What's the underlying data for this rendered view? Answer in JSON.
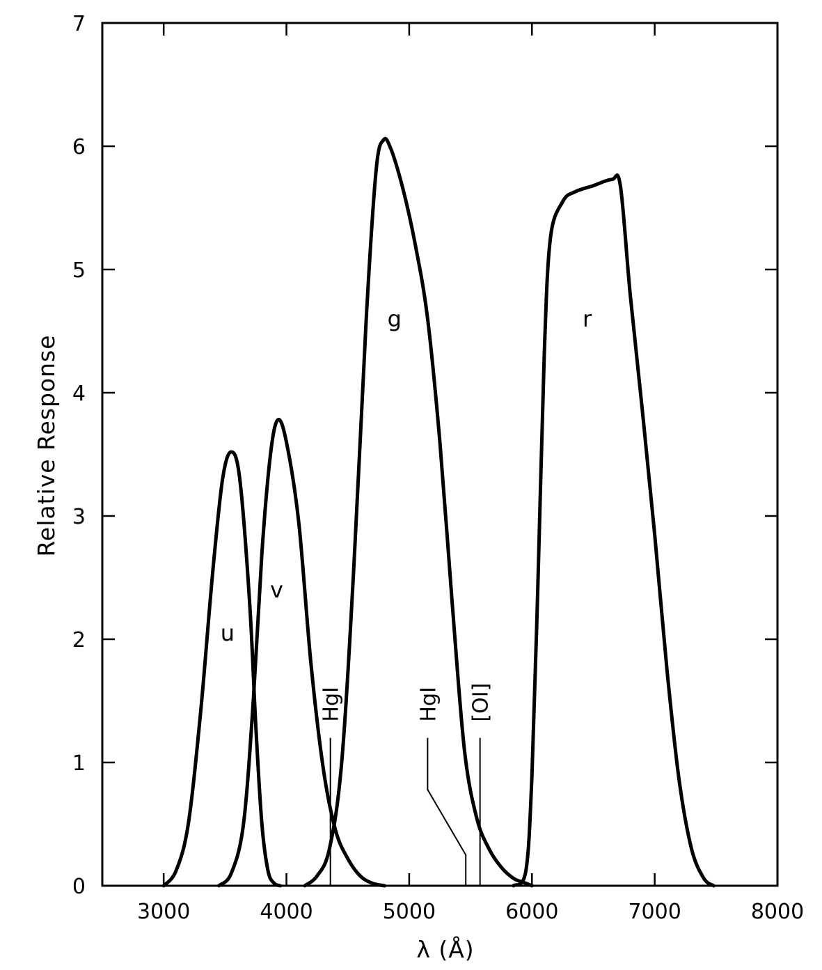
{
  "chart_data": {
    "type": "line",
    "title": "",
    "xlabel": "λ (Å)",
    "ylabel": "Relative Response",
    "xlim": [
      2500,
      8000
    ],
    "ylim": [
      0,
      7
    ],
    "xticks": [
      3000,
      4000,
      5000,
      6000,
      7000,
      8000
    ],
    "yticks": [
      0,
      1,
      2,
      3,
      4,
      5,
      6,
      7
    ],
    "ytick_labels": [
      "0",
      "1",
      "2",
      "3",
      "4",
      "5",
      "6",
      "7"
    ],
    "grid": false,
    "legend": "none",
    "series": [
      {
        "name": "u",
        "label_at": [
          3520,
          2.05
        ],
        "points": [
          [
            3000,
            0
          ],
          [
            3100,
            0.12
          ],
          [
            3200,
            0.5
          ],
          [
            3300,
            1.4
          ],
          [
            3400,
            2.55
          ],
          [
            3480,
            3.3
          ],
          [
            3550,
            3.52
          ],
          [
            3620,
            3.3
          ],
          [
            3700,
            2.3
          ],
          [
            3750,
            1.3
          ],
          [
            3800,
            0.5
          ],
          [
            3850,
            0.12
          ],
          [
            3900,
            0.02
          ],
          [
            3950,
            0
          ]
        ]
      },
      {
        "name": "v",
        "label_at": [
          3920,
          2.4
        ],
        "points": [
          [
            3450,
            0
          ],
          [
            3550,
            0.1
          ],
          [
            3650,
            0.5
          ],
          [
            3730,
            1.5
          ],
          [
            3800,
            2.7
          ],
          [
            3870,
            3.5
          ],
          [
            3930,
            3.78
          ],
          [
            4000,
            3.6
          ],
          [
            4100,
            2.95
          ],
          [
            4200,
            1.8
          ],
          [
            4300,
            0.95
          ],
          [
            4400,
            0.45
          ],
          [
            4500,
            0.22
          ],
          [
            4600,
            0.08
          ],
          [
            4700,
            0.02
          ],
          [
            4800,
            0
          ]
        ]
      },
      {
        "name": "g",
        "label_at": [
          4880,
          4.6
        ],
        "points": [
          [
            4150,
            0
          ],
          [
            4250,
            0.08
          ],
          [
            4350,
            0.3
          ],
          [
            4450,
            1.0
          ],
          [
            4550,
            2.6
          ],
          [
            4650,
            4.6
          ],
          [
            4730,
            5.8
          ],
          [
            4790,
            6.05
          ],
          [
            4850,
            5.98
          ],
          [
            4950,
            5.65
          ],
          [
            5050,
            5.2
          ],
          [
            5150,
            4.6
          ],
          [
            5250,
            3.6
          ],
          [
            5350,
            2.3
          ],
          [
            5450,
            1.1
          ],
          [
            5550,
            0.55
          ],
          [
            5650,
            0.3
          ],
          [
            5750,
            0.15
          ],
          [
            5850,
            0.06
          ],
          [
            5950,
            0.02
          ],
          [
            6000,
            0
          ]
        ]
      },
      {
        "name": "r",
        "label_at": [
          6450,
          4.6
        ],
        "points": [
          [
            5850,
            0
          ],
          [
            5950,
            0.12
          ],
          [
            6000,
            0.9
          ],
          [
            6050,
            2.5
          ],
          [
            6100,
            4.3
          ],
          [
            6150,
            5.25
          ],
          [
            6250,
            5.55
          ],
          [
            6350,
            5.63
          ],
          [
            6500,
            5.68
          ],
          [
            6650,
            5.73
          ],
          [
            6720,
            5.68
          ],
          [
            6800,
            4.8
          ],
          [
            6900,
            3.85
          ],
          [
            7000,
            2.85
          ],
          [
            7100,
            1.75
          ],
          [
            7200,
            0.85
          ],
          [
            7300,
            0.3
          ],
          [
            7400,
            0.06
          ],
          [
            7480,
            0
          ]
        ]
      }
    ],
    "annotations": [
      {
        "text": "HgI",
        "wavelength": 4358,
        "line_top": 1.2,
        "label_base": 1.33
      },
      {
        "text": "HgI",
        "wavelength": 5461,
        "elbow_x": 5150,
        "elbow_top": 1.2,
        "elbow_bottom": 0.78,
        "label_base": 1.33
      },
      {
        "text": "[OI]",
        "wavelength": 5577,
        "line_top": 1.2,
        "label_base": 1.33
      }
    ]
  }
}
